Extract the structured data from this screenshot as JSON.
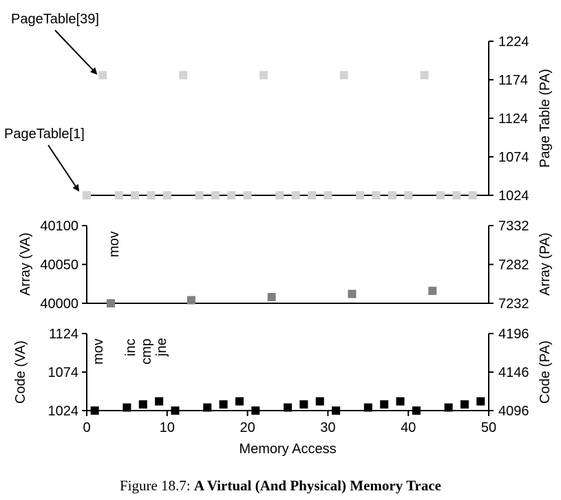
{
  "figure": {
    "caption_label": "Figure 18.7:",
    "caption_title": "A Virtual (And Physical) Memory Trace"
  },
  "chart_data": [
    {
      "type": "scatter",
      "panel": "page-table",
      "title": "",
      "xlabel": "",
      "ylabel_right": "Page Table (PA)",
      "ylim": [
        1024,
        1224
      ],
      "ticks_right": [
        1024,
        1074,
        1124,
        1174,
        1224
      ],
      "color": "#d3d3d3",
      "series": [
        {
          "x": [
            0,
            2,
            4,
            6,
            8,
            10,
            12,
            14,
            16,
            18,
            20,
            22,
            24,
            26,
            28,
            30,
            32,
            34,
            36,
            38,
            40,
            42,
            44,
            46,
            48
          ],
          "y": [
            1024,
            1180,
            1024,
            1024,
            1024,
            1024,
            1180,
            1024,
            1024,
            1024,
            1024,
            1180,
            1024,
            1024,
            1024,
            1024,
            1180,
            1024,
            1024,
            1024,
            1024,
            1180,
            1024,
            1024,
            1024
          ]
        }
      ],
      "annotations": [
        "PageTable[39]",
        "PageTable[1]"
      ]
    },
    {
      "type": "scatter",
      "panel": "array",
      "title": "",
      "ylabel_left": "Array (VA)",
      "ylabel_right": "Array (PA)",
      "ylim_left": [
        40000,
        40100
      ],
      "ylim_right": [
        7232,
        7332
      ],
      "ticks_left": [
        40000,
        40050,
        40100
      ],
      "ticks_right": [
        7232,
        7282,
        7332
      ],
      "color": "#808080",
      "series": [
        {
          "x": [
            3,
            13,
            23,
            33,
            43
          ],
          "y": [
            40000,
            40004,
            40008,
            40012,
            40016
          ]
        }
      ],
      "annotations": [
        "mov"
      ]
    },
    {
      "type": "scatter",
      "panel": "code",
      "title": "",
      "xlabel": "Memory Access",
      "ylabel_left": "Code (VA)",
      "ylabel_right": "Code (PA)",
      "ylim_left": [
        1024,
        1124
      ],
      "ylim_right": [
        4096,
        4196
      ],
      "ticks_left": [
        1024,
        1074,
        1124
      ],
      "ticks_right": [
        4096,
        4146,
        4196
      ],
      "xlim": [
        0,
        50
      ],
      "ticks_x": [
        0,
        10,
        20,
        30,
        40,
        50
      ],
      "color": "#000000",
      "series": [
        {
          "x": [
            1,
            5,
            7,
            9,
            11,
            15,
            17,
            19,
            21,
            25,
            27,
            29,
            31,
            35,
            37,
            39,
            41,
            45,
            47,
            49
          ],
          "y": [
            1024,
            1028,
            1032,
            1036,
            1024,
            1028,
            1032,
            1036,
            1024,
            1028,
            1032,
            1036,
            1024,
            1028,
            1032,
            1036,
            1024,
            1028,
            1032,
            1036
          ]
        }
      ],
      "annotations": [
        "mov",
        "inc",
        "cmp",
        "jne"
      ]
    }
  ]
}
